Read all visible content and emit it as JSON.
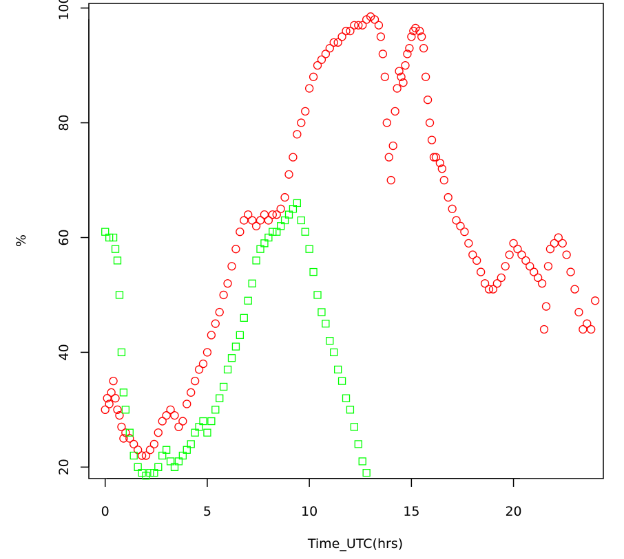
{
  "chart_data": {
    "type": "scatter",
    "title": "",
    "xlabel": "Time_UTC(hrs)",
    "ylabel": "%",
    "xlim": [
      -0.8,
      24.4
    ],
    "ylim": [
      18.0,
      100.8
    ],
    "grid": false,
    "x_ticks": [
      0,
      5,
      10,
      15,
      20
    ],
    "y_ticks": [
      20,
      40,
      60,
      80,
      100
    ],
    "x_tick_labels": [
      "0",
      "5",
      "10",
      "15",
      "20"
    ],
    "y_tick_labels": [
      "20",
      "40",
      "60",
      "80",
      "100"
    ],
    "series": [
      {
        "marker": "circle",
        "color": "#ff0000",
        "points": [
          [
            0.0,
            30
          ],
          [
            0.1,
            32
          ],
          [
            0.2,
            31
          ],
          [
            0.3,
            33
          ],
          [
            0.4,
            35
          ],
          [
            0.5,
            32
          ],
          [
            0.6,
            30
          ],
          [
            0.7,
            29
          ],
          [
            0.8,
            27
          ],
          [
            0.9,
            25
          ],
          [
            1.0,
            26
          ],
          [
            1.2,
            25
          ],
          [
            1.4,
            24
          ],
          [
            1.6,
            23
          ],
          [
            1.8,
            22
          ],
          [
            2.0,
            22
          ],
          [
            2.2,
            23
          ],
          [
            2.4,
            24
          ],
          [
            2.6,
            26
          ],
          [
            2.8,
            28
          ],
          [
            3.0,
            29
          ],
          [
            3.2,
            30
          ],
          [
            3.4,
            29
          ],
          [
            3.6,
            27
          ],
          [
            3.8,
            28
          ],
          [
            4.0,
            31
          ],
          [
            4.2,
            33
          ],
          [
            4.4,
            35
          ],
          [
            4.6,
            37
          ],
          [
            4.8,
            38
          ],
          [
            5.0,
            40
          ],
          [
            5.2,
            43
          ],
          [
            5.4,
            45
          ],
          [
            5.6,
            47
          ],
          [
            5.8,
            50
          ],
          [
            6.0,
            52
          ],
          [
            6.2,
            55
          ],
          [
            6.4,
            58
          ],
          [
            6.6,
            61
          ],
          [
            6.8,
            63
          ],
          [
            7.0,
            64
          ],
          [
            7.2,
            63
          ],
          [
            7.4,
            62
          ],
          [
            7.6,
            63
          ],
          [
            7.8,
            64
          ],
          [
            8.0,
            63
          ],
          [
            8.2,
            64
          ],
          [
            8.4,
            64
          ],
          [
            8.6,
            65
          ],
          [
            8.8,
            67
          ],
          [
            9.0,
            71
          ],
          [
            9.2,
            74
          ],
          [
            9.4,
            78
          ],
          [
            9.6,
            80
          ],
          [
            9.8,
            82
          ],
          [
            10.0,
            86
          ],
          [
            10.2,
            88
          ],
          [
            10.4,
            90
          ],
          [
            10.6,
            91
          ],
          [
            10.8,
            92
          ],
          [
            11.0,
            93
          ],
          [
            11.2,
            94
          ],
          [
            11.4,
            94
          ],
          [
            11.6,
            95
          ],
          [
            11.8,
            96
          ],
          [
            12.0,
            96
          ],
          [
            12.2,
            97
          ],
          [
            12.4,
            97
          ],
          [
            12.6,
            97
          ],
          [
            12.8,
            98
          ],
          [
            13.0,
            98.5
          ],
          [
            13.2,
            98
          ],
          [
            13.4,
            97
          ],
          [
            13.5,
            95
          ],
          [
            13.6,
            92
          ],
          [
            13.7,
            88
          ],
          [
            13.8,
            80
          ],
          [
            13.9,
            74
          ],
          [
            14.0,
            70
          ],
          [
            14.1,
            76
          ],
          [
            14.2,
            82
          ],
          [
            14.3,
            86
          ],
          [
            14.4,
            89
          ],
          [
            14.5,
            88
          ],
          [
            14.6,
            87
          ],
          [
            14.7,
            90
          ],
          [
            14.8,
            92
          ],
          [
            14.9,
            93
          ],
          [
            15.0,
            95
          ],
          [
            15.1,
            96
          ],
          [
            15.2,
            96.5
          ],
          [
            15.4,
            96
          ],
          [
            15.5,
            95
          ],
          [
            15.6,
            93
          ],
          [
            15.7,
            88
          ],
          [
            15.8,
            84
          ],
          [
            15.9,
            80
          ],
          [
            16.0,
            77
          ],
          [
            16.1,
            74
          ],
          [
            16.2,
            74
          ],
          [
            16.4,
            73
          ],
          [
            16.5,
            72
          ],
          [
            16.6,
            70
          ],
          [
            16.8,
            67
          ],
          [
            17.0,
            65
          ],
          [
            17.2,
            63
          ],
          [
            17.4,
            62
          ],
          [
            17.6,
            61
          ],
          [
            17.8,
            59
          ],
          [
            18.0,
            57
          ],
          [
            18.2,
            56
          ],
          [
            18.4,
            54
          ],
          [
            18.6,
            52
          ],
          [
            18.8,
            51
          ],
          [
            19.0,
            51
          ],
          [
            19.2,
            52
          ],
          [
            19.4,
            53
          ],
          [
            19.6,
            55
          ],
          [
            19.8,
            57
          ],
          [
            20.0,
            59
          ],
          [
            20.2,
            58
          ],
          [
            20.4,
            57
          ],
          [
            20.6,
            56
          ],
          [
            20.8,
            55
          ],
          [
            21.0,
            54
          ],
          [
            21.2,
            53
          ],
          [
            21.4,
            52
          ],
          [
            21.5,
            44
          ],
          [
            21.6,
            48
          ],
          [
            21.7,
            55
          ],
          [
            21.8,
            58
          ],
          [
            22.0,
            59
          ],
          [
            22.2,
            60
          ],
          [
            22.4,
            59
          ],
          [
            22.6,
            57
          ],
          [
            22.8,
            54
          ],
          [
            23.0,
            51
          ],
          [
            23.2,
            47
          ],
          [
            23.4,
            44
          ],
          [
            23.6,
            45
          ],
          [
            23.8,
            44
          ],
          [
            24.0,
            49
          ]
        ]
      },
      {
        "marker": "square",
        "color": "#00ff00",
        "points": [
          [
            0.0,
            61
          ],
          [
            0.2,
            60
          ],
          [
            0.4,
            60
          ],
          [
            0.5,
            58
          ],
          [
            0.6,
            56
          ],
          [
            0.7,
            50
          ],
          [
            0.8,
            40
          ],
          [
            0.9,
            33
          ],
          [
            1.0,
            30
          ],
          [
            1.2,
            26
          ],
          [
            1.4,
            22
          ],
          [
            1.6,
            20
          ],
          [
            1.8,
            19
          ],
          [
            2.0,
            18.5
          ],
          [
            2.2,
            19
          ],
          [
            2.4,
            19
          ],
          [
            2.6,
            20
          ],
          [
            2.8,
            22
          ],
          [
            3.0,
            23
          ],
          [
            3.2,
            21
          ],
          [
            3.4,
            20
          ],
          [
            3.6,
            21
          ],
          [
            3.8,
            22
          ],
          [
            4.0,
            23
          ],
          [
            4.2,
            24
          ],
          [
            4.4,
            26
          ],
          [
            4.6,
            27
          ],
          [
            4.8,
            28
          ],
          [
            5.0,
            26
          ],
          [
            5.2,
            28
          ],
          [
            5.4,
            30
          ],
          [
            5.6,
            32
          ],
          [
            5.8,
            34
          ],
          [
            6.0,
            37
          ],
          [
            6.2,
            39
          ],
          [
            6.4,
            41
          ],
          [
            6.6,
            43
          ],
          [
            6.8,
            46
          ],
          [
            7.0,
            49
          ],
          [
            7.2,
            52
          ],
          [
            7.4,
            56
          ],
          [
            7.6,
            58
          ],
          [
            7.8,
            59
          ],
          [
            8.0,
            60
          ],
          [
            8.2,
            61
          ],
          [
            8.4,
            61
          ],
          [
            8.6,
            62
          ],
          [
            8.8,
            63
          ],
          [
            9.0,
            64
          ],
          [
            9.2,
            65
          ],
          [
            9.4,
            66
          ],
          [
            9.6,
            63
          ],
          [
            9.8,
            61
          ],
          [
            10.0,
            58
          ],
          [
            10.2,
            54
          ],
          [
            10.4,
            50
          ],
          [
            10.6,
            47
          ],
          [
            10.8,
            45
          ],
          [
            11.0,
            42
          ],
          [
            11.2,
            40
          ],
          [
            11.4,
            37
          ],
          [
            11.6,
            35
          ],
          [
            11.8,
            32
          ],
          [
            12.0,
            30
          ],
          [
            12.2,
            27
          ],
          [
            12.4,
            24
          ],
          [
            12.6,
            21
          ],
          [
            12.8,
            19
          ]
        ]
      }
    ]
  }
}
